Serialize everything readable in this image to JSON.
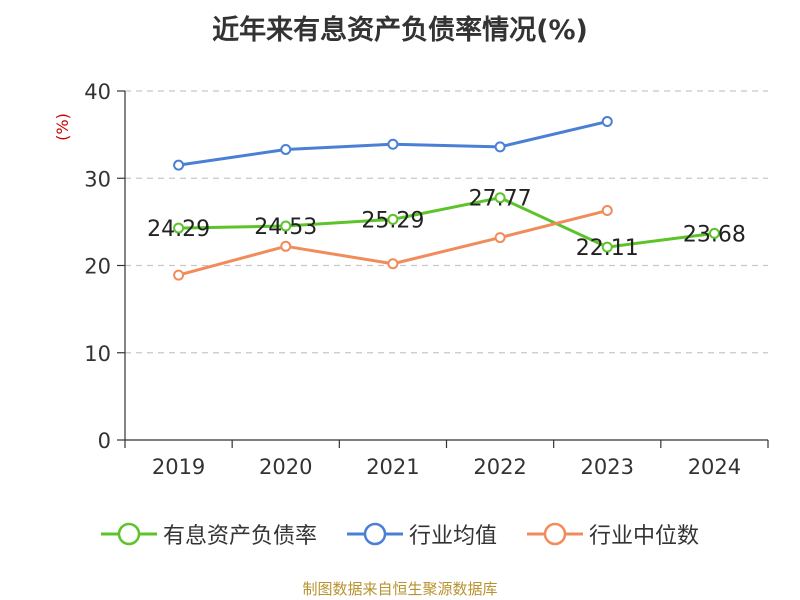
{
  "chart_data": {
    "type": "line",
    "title": "近年来有息资产负债率情况(%)",
    "ylabel": "(%)",
    "categories": [
      "2019",
      "2020",
      "2021",
      "2022",
      "2023",
      "2024"
    ],
    "ylim": [
      0,
      40
    ],
    "yticks": [
      0,
      10,
      20,
      30,
      40
    ],
    "grid": true,
    "legend_position": "bottom",
    "series": [
      {
        "name": "有息资产负债率",
        "color": "#5cc42a",
        "values": [
          24.29,
          24.53,
          25.29,
          27.77,
          22.11,
          23.68
        ],
        "labels": [
          "24.29",
          "24.53",
          "25.29",
          "27.77",
          "22.11",
          "23.68"
        ]
      },
      {
        "name": "行业均值",
        "color": "#4a7fd6",
        "values": [
          31.5,
          33.3,
          33.9,
          33.6,
          36.5,
          null
        ]
      },
      {
        "name": "行业中位数",
        "color": "#f18c5a",
        "values": [
          18.9,
          22.2,
          20.2,
          23.2,
          26.3,
          null
        ]
      }
    ]
  },
  "source": "制图数据来自恒生聚源数据库"
}
